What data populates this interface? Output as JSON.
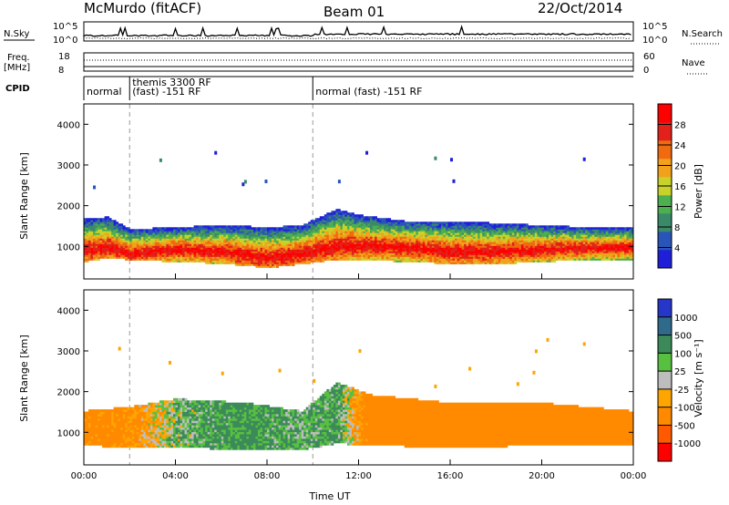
{
  "header": {
    "station": "McMurdo (fitACF)",
    "beam": "Beam 01",
    "date": "22/Oct/2014"
  },
  "noise_panel": {
    "left_label": "N.Sky",
    "right_label": "N.Search",
    "left_ticks": [
      "10^5",
      "10^0"
    ],
    "right_ticks": [
      "10^5",
      "10^0"
    ]
  },
  "freq_panel": {
    "left_label_1": "Freq.",
    "left_label_2": "[MHz]",
    "right_label": "Nave",
    "left_ticks": [
      "18",
      "8"
    ],
    "right_ticks": [
      "60",
      "0"
    ]
  },
  "cpid_panel": {
    "label": "CPID",
    "segments": [
      {
        "start": 0,
        "end": 2,
        "line1": "",
        "line2": "normal"
      },
      {
        "start": 2,
        "end": 10,
        "line1": "themis 3300 RF",
        "line2": "(fast) -151 RF"
      },
      {
        "start": 10,
        "end": 24,
        "line1": "",
        "line2": "normal (fast) -151 RF"
      }
    ]
  },
  "colors": {
    "power_scale": [
      "#1f1fd9",
      "#2a55b8",
      "#3a8a6a",
      "#4caf50",
      "#c8d22a",
      "#f2a21a",
      "#f06a10",
      "#e2221a",
      "#ff0000"
    ],
    "velocity_scale": [
      "#2536c8",
      "#2f6a8a",
      "#3c8a5a",
      "#58c040",
      "#bdbdbd",
      "#ffa500",
      "#ff8a00",
      "#ff5a00",
      "#ff0000"
    ]
  },
  "chart_data": [
    {
      "type": "heatmap",
      "name": "power",
      "xlabel": "",
      "ylabel": "Slant Range [km]",
      "y_ticks": [
        "1000",
        "2000",
        "3000",
        "4000"
      ],
      "ylim": [
        200,
        4500
      ],
      "xlim": [
        0,
        24
      ],
      "colorbar": {
        "label": "Power [dB]",
        "ticks": [
          "4",
          "8",
          "12",
          "16",
          "20",
          "24",
          "28"
        ]
      },
      "profile": [
        {
          "x": 0.0,
          "lo": 600,
          "hi": 1650,
          "core": 900
        },
        {
          "x": 1.0,
          "lo": 700,
          "hi": 1700,
          "core": 950
        },
        {
          "x": 2.0,
          "lo": 650,
          "hi": 1400,
          "core": 800
        },
        {
          "x": 4.0,
          "lo": 600,
          "hi": 1450,
          "core": 900
        },
        {
          "x": 6.0,
          "lo": 550,
          "hi": 1500,
          "core": 850
        },
        {
          "x": 8.0,
          "lo": 450,
          "hi": 1450,
          "core": 700
        },
        {
          "x": 9.5,
          "lo": 550,
          "hi": 1500,
          "core": 800
        },
        {
          "x": 11.0,
          "lo": 650,
          "hi": 1900,
          "core": 1000
        },
        {
          "x": 12.0,
          "lo": 650,
          "hi": 1750,
          "core": 1000
        },
        {
          "x": 14.0,
          "lo": 600,
          "hi": 1600,
          "core": 950
        },
        {
          "x": 16.0,
          "lo": 550,
          "hi": 1600,
          "core": 850
        },
        {
          "x": 18.0,
          "lo": 550,
          "hi": 1550,
          "core": 850
        },
        {
          "x": 20.0,
          "lo": 600,
          "hi": 1500,
          "core": 900
        },
        {
          "x": 22.0,
          "lo": 650,
          "hi": 1450,
          "core": 950
        },
        {
          "x": 24.0,
          "lo": 650,
          "hi": 1450,
          "core": 950
        }
      ]
    },
    {
      "type": "heatmap",
      "name": "velocity",
      "xlabel": "Time UT",
      "ylabel": "Slant Range [km]",
      "x_ticks": [
        "00:00",
        "04:00",
        "08:00",
        "12:00",
        "16:00",
        "20:00",
        "00:00"
      ],
      "y_ticks": [
        "1000",
        "2000",
        "3000",
        "4000"
      ],
      "ylim": [
        200,
        4500
      ],
      "xlim": [
        0,
        24
      ],
      "colorbar": {
        "label": "Velocity [m s⁻¹]",
        "ticks": [
          "1000",
          "500",
          "100",
          "25",
          "-25",
          "-100",
          "-500",
          "-1000"
        ]
      },
      "profile": [
        {
          "x": 0.0,
          "lo": 650,
          "hi": 1500,
          "v": -200
        },
        {
          "x": 2.0,
          "lo": 600,
          "hi": 1600,
          "v": -150
        },
        {
          "x": 4.0,
          "lo": 600,
          "hi": 1800,
          "v": 60
        },
        {
          "x": 7.0,
          "lo": 550,
          "hi": 1700,
          "v": 150
        },
        {
          "x": 9.5,
          "lo": 550,
          "hi": 1500,
          "v": 80
        },
        {
          "x": 11.0,
          "lo": 700,
          "hi": 2200,
          "v": 120
        },
        {
          "x": 12.5,
          "lo": 650,
          "hi": 1900,
          "v": -250
        },
        {
          "x": 16.0,
          "lo": 600,
          "hi": 1700,
          "v": -300
        },
        {
          "x": 20.0,
          "lo": 650,
          "hi": 1700,
          "v": -300
        },
        {
          "x": 24.0,
          "lo": 650,
          "hi": 1500,
          "v": -250
        }
      ]
    }
  ]
}
